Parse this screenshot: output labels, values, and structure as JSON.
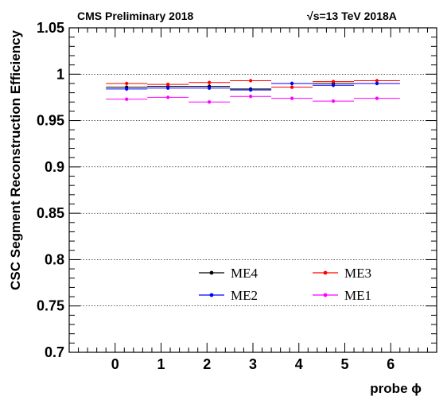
{
  "header": {
    "left": "CMS Preliminary 2018",
    "right_sqrt": "√",
    "right_rest": "s=13 TeV 2018A"
  },
  "chart_data": {
    "type": "scatter",
    "title": "",
    "xlabel": "probe ϕ",
    "ylabel": "CSC Segment Reconstruction Efficiency",
    "xlim": [
      -1.0,
      7.0
    ],
    "ylim": [
      0.7,
      1.05
    ],
    "x_ticks": [
      0,
      1,
      2,
      3,
      4,
      5,
      6
    ],
    "x_tick_labels": [
      "0",
      "1",
      "2",
      "3",
      "4",
      "5",
      "6"
    ],
    "y_ticks": [
      0.7,
      0.75,
      0.8,
      0.85,
      0.9,
      0.95,
      1.0,
      1.05
    ],
    "y_tick_labels": [
      "0.7",
      "0.75",
      "0.8",
      "0.85",
      "0.9",
      "0.95",
      "1",
      "1.05"
    ],
    "grid_y": true,
    "grid_x": false,
    "legend_position": "bottom-center",
    "bin_edges": [
      -0.2,
      0.7,
      1.6,
      2.5,
      3.4,
      4.3,
      5.2,
      6.2
    ],
    "series": [
      {
        "name": "ME4",
        "color": "#000000",
        "values": [
          0.986,
          0.987,
          0.987,
          0.984,
          0.99,
          0.99,
          0.99
        ]
      },
      {
        "name": "ME3",
        "color": "#ff0000",
        "values": [
          0.99,
          0.989,
          0.991,
          0.993,
          0.986,
          0.992,
          0.993
        ]
      },
      {
        "name": "ME2",
        "color": "#0000ff",
        "values": [
          0.984,
          0.985,
          0.985,
          0.983,
          0.99,
          0.988,
          0.99
        ]
      },
      {
        "name": "ME1",
        "color": "#ff00ff",
        "values": [
          0.973,
          0.975,
          0.97,
          0.976,
          0.974,
          0.971,
          0.974
        ]
      }
    ]
  }
}
